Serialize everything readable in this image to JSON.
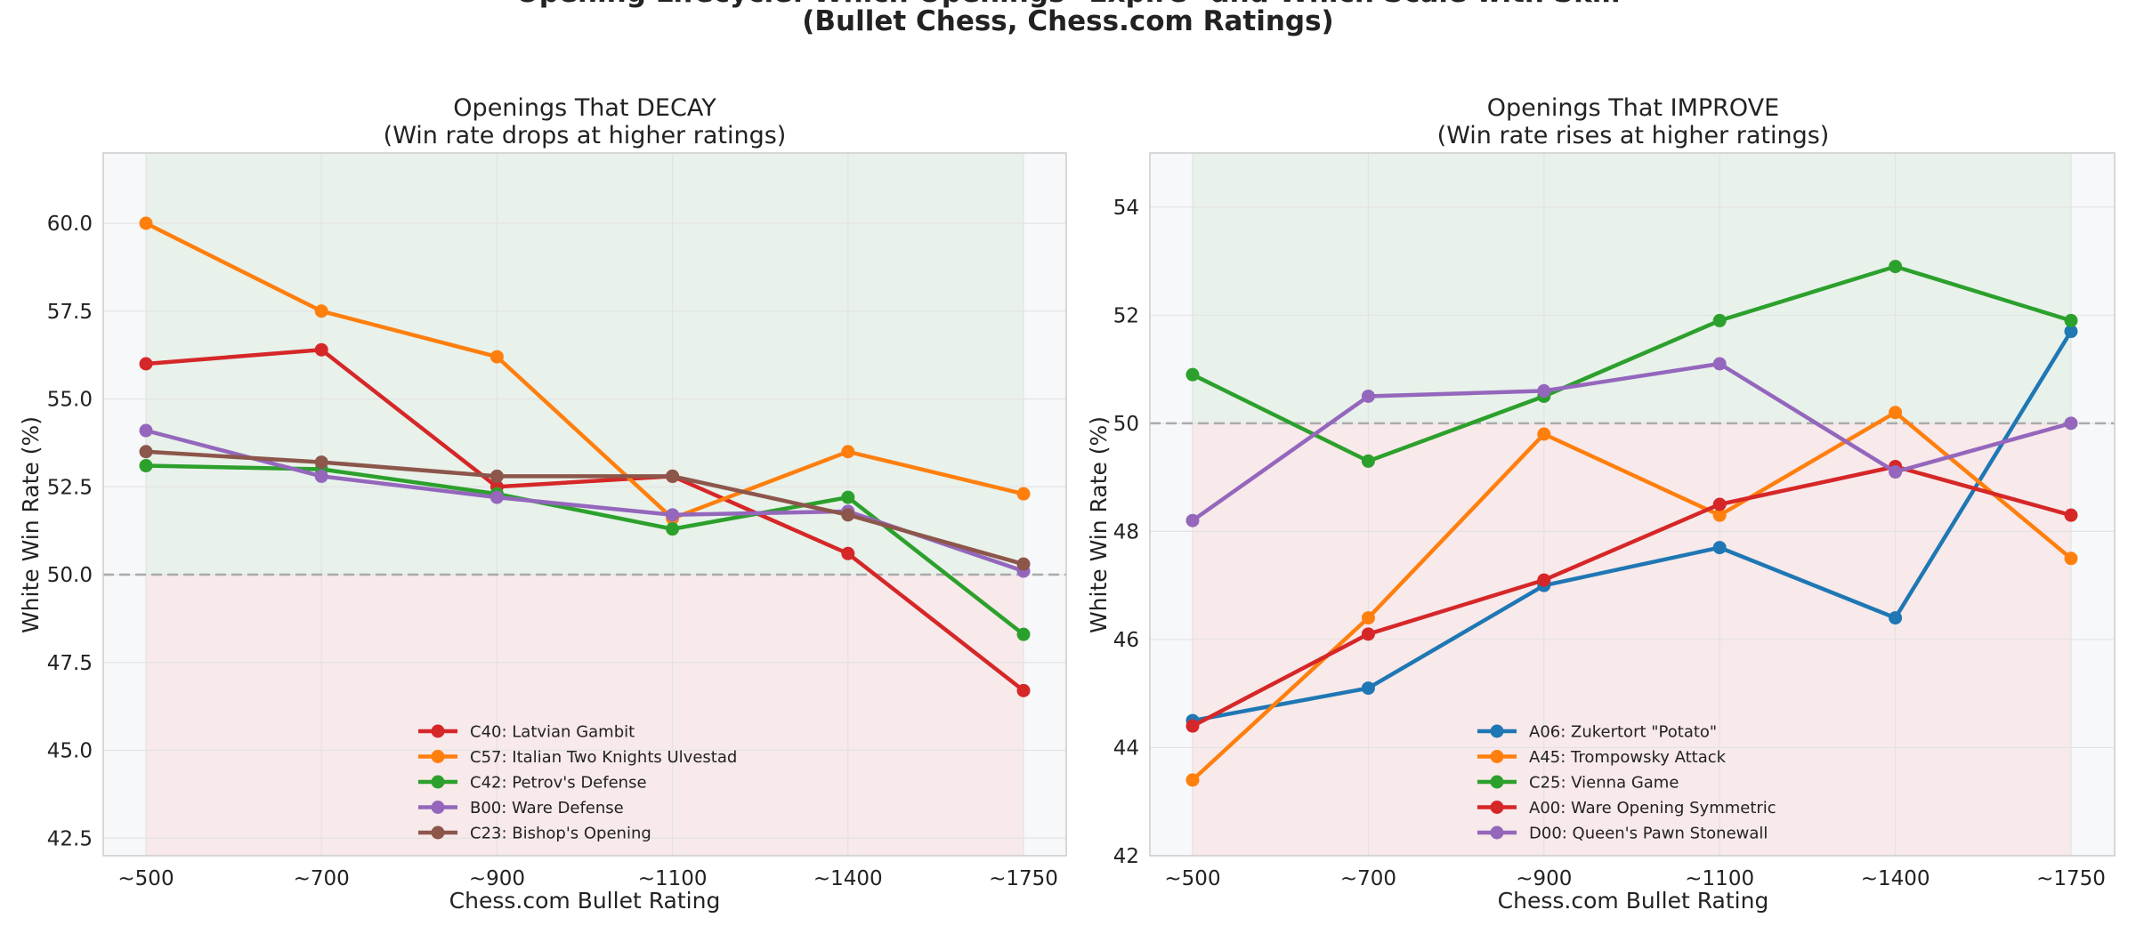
{
  "title_lines": [
    "Opening Lifecycle: Which Openings \"Expire\" and Which Scale with Skill",
    "(Bullet Chess, Chess.com Ratings)"
  ],
  "colors": {
    "green_zone": "#e8f1ea",
    "red_zone": "#f8e9ea",
    "plot_bg": "#f7f8fa",
    "reference_line": "#aaaaaa",
    "grid": "#e3e3e3"
  },
  "chart_data": [
    {
      "type": "line",
      "title_lines": [
        "Openings That DECAY",
        "(Win rate drops at higher ratings)"
      ],
      "xlabel": "Chess.com Bullet Rating",
      "ylabel": "White Win Rate (%)",
      "categories": [
        "~500",
        "~700",
        "~900",
        "~1100",
        "~1400",
        "~1750"
      ],
      "ylim": [
        42.0,
        62.0
      ],
      "yticks": [
        "42.5",
        "45.0",
        "47.5",
        "50.0",
        "52.5",
        "55.0",
        "57.5",
        "60.0"
      ],
      "reference_line": 50.0,
      "grid": true,
      "legend_position": "lower-center",
      "series": [
        {
          "name": "C40: Latvian Gambit",
          "color": "#d62728",
          "values": [
            56.0,
            56.4,
            52.5,
            52.8,
            50.6,
            46.7
          ]
        },
        {
          "name": "C57: Italian Two Knights Ulvestad",
          "color": "#ff7f0e",
          "values": [
            60.0,
            57.5,
            56.2,
            51.6,
            53.5,
            52.3
          ]
        },
        {
          "name": "C42: Petrov's Defense",
          "color": "#2ca02c",
          "values": [
            53.1,
            53.0,
            52.3,
            51.3,
            52.2,
            48.3
          ]
        },
        {
          "name": "B00: Ware Defense",
          "color": "#9467bd",
          "values": [
            54.1,
            52.8,
            52.2,
            51.7,
            51.8,
            50.1
          ]
        },
        {
          "name": "C23: Bishop's Opening",
          "color": "#8c564b",
          "values": [
            53.5,
            53.2,
            52.8,
            52.8,
            51.7,
            50.3
          ]
        }
      ]
    },
    {
      "type": "line",
      "title_lines": [
        "Openings That IMPROVE",
        "(Win rate rises at higher ratings)"
      ],
      "xlabel": "Chess.com Bullet Rating",
      "ylabel": "White Win Rate (%)",
      "categories": [
        "~500",
        "~700",
        "~900",
        "~1100",
        "~1400",
        "~1750"
      ],
      "ylim": [
        42.0,
        55.0
      ],
      "yticks": [
        "42",
        "44",
        "46",
        "48",
        "50",
        "52",
        "54"
      ],
      "reference_line": 50.0,
      "grid": true,
      "legend_position": "lower-center",
      "series": [
        {
          "name": "A06: Zukertort \"Potato\"",
          "color": "#1f77b4",
          "values": [
            44.5,
            45.1,
            47.0,
            47.7,
            46.4,
            51.7
          ]
        },
        {
          "name": "A45: Trompowsky Attack",
          "color": "#ff7f0e",
          "values": [
            43.4,
            46.4,
            49.8,
            48.3,
            50.2,
            47.5
          ]
        },
        {
          "name": "C25: Vienna Game",
          "color": "#2ca02c",
          "values": [
            50.9,
            49.3,
            50.5,
            51.9,
            52.9,
            51.9
          ]
        },
        {
          "name": "A00: Ware Opening Symmetric",
          "color": "#d62728",
          "values": [
            44.4,
            46.1,
            47.1,
            48.5,
            49.2,
            48.3
          ]
        },
        {
          "name": "D00: Queen's Pawn Stonewall",
          "color": "#9467bd",
          "values": [
            48.2,
            50.5,
            50.6,
            51.1,
            49.1,
            50.0
          ]
        }
      ]
    }
  ]
}
